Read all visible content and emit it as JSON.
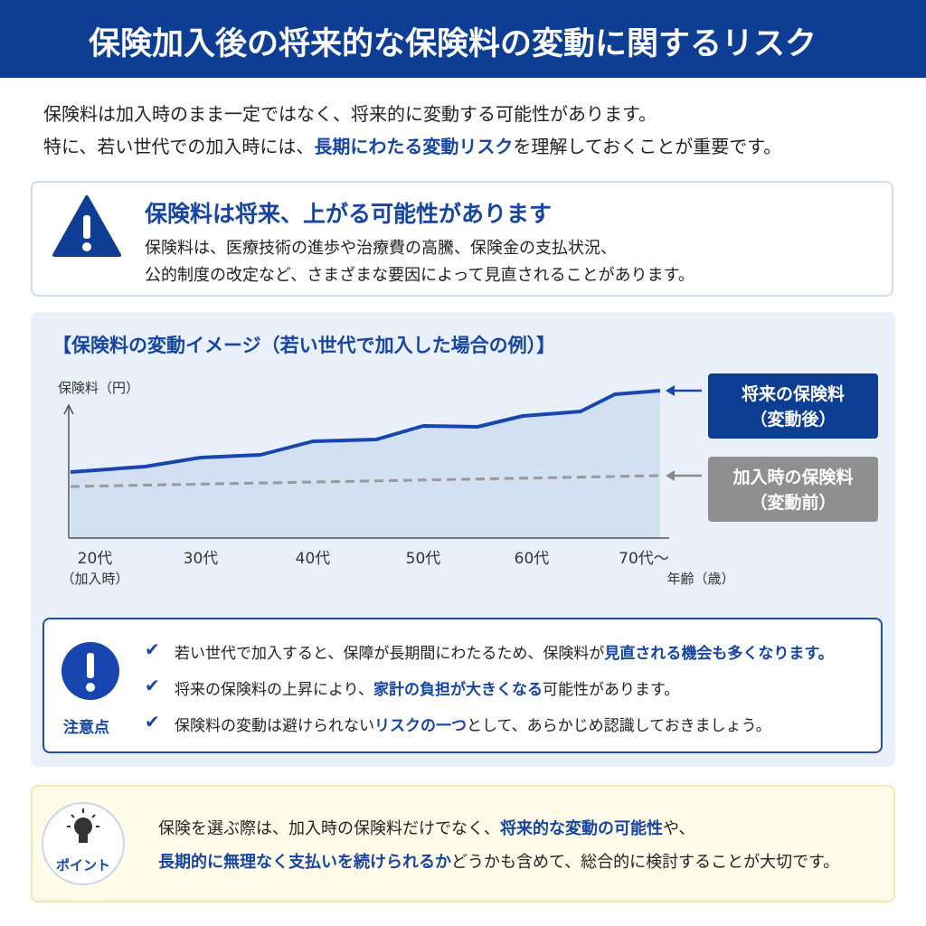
{
  "header": {
    "title": "保険加入後の将来的な保険料の変動に関するリスク"
  },
  "intro": {
    "line1": "保険料は加入時のまま一定ではなく、将来的に変動する可能性があります。",
    "line2": [
      "特に、若い世代での加入時には、",
      "長期にわたる変動リスク",
      "を理解しておくことが重要です。"
    ]
  },
  "warning": {
    "heading": "保険料は将来、上がる可能性があります",
    "body": [
      "保険料は、医療技術の進歩や治療費の高騰、保険金の支払状況、",
      "公的制度の改定など、さまざまな要因によって見直されることがあります。"
    ]
  },
  "chart_panel": {
    "title": "【保険料の変動イメージ（若い世代で加入した場合の例）】",
    "y_label": "保険料（円）",
    "x_label": "年齢（歳）",
    "x_labels": [
      [
        "20代",
        "（加入時）"
      ],
      [
        "30代"
      ],
      [
        "40代"
      ],
      [
        "50代"
      ],
      [
        "60代"
      ],
      [
        "70代〜"
      ]
    ],
    "future_label": [
      "将来の保険料",
      "（変動後）"
    ],
    "initial_label": [
      "加入時の保険料",
      "（変動前）"
    ]
  },
  "caution": {
    "label": "注意点",
    "items": [
      [
        "若い世代で加入すると、保障が長期間にわたるため、保険料が",
        "見直される機会も多くなります。",
        ""
      ],
      [
        "将来の保険料の上昇により、",
        "家計の負担が大きくなる",
        "可能性があります。"
      ],
      [
        "保険料の変動は避けられない",
        "リスクの一つ",
        "として、あらかじめ認識しておきましょう。"
      ]
    ]
  },
  "point": {
    "label": "ポイント",
    "lines": [
      [
        "保険を選ぶ際は、加入時の保険料だけでなく、",
        "将来的な変動の可能性",
        "や、"
      ],
      [
        "",
        "長期的に無理なく支払いを続けられるか",
        "どうかも含めて、総合的に検討することが大切です。"
      ]
    ]
  }
}
